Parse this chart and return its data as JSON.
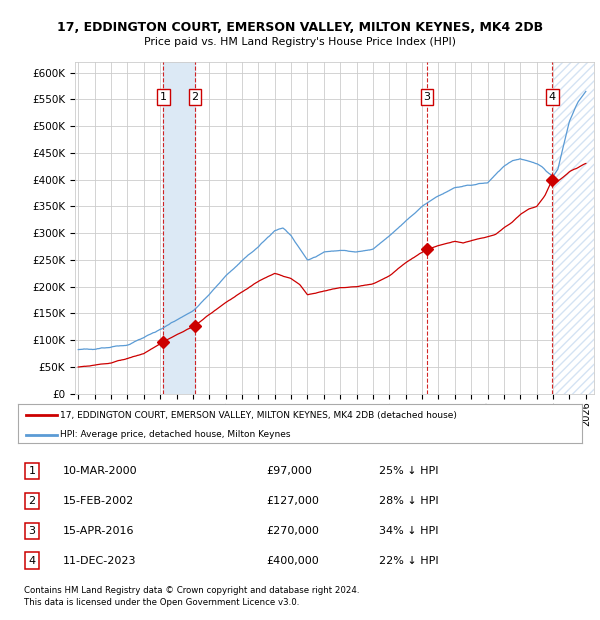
{
  "title1": "17, EDDINGTON COURT, EMERSON VALLEY, MILTON KEYNES, MK4 2DB",
  "title2": "Price paid vs. HM Land Registry's House Price Index (HPI)",
  "ylabel_ticks": [
    "£0",
    "£50K",
    "£100K",
    "£150K",
    "£200K",
    "£250K",
    "£300K",
    "£350K",
    "£400K",
    "£450K",
    "£500K",
    "£550K",
    "£600K"
  ],
  "ytick_vals": [
    0,
    50000,
    100000,
    150000,
    200000,
    250000,
    300000,
    350000,
    400000,
    450000,
    500000,
    550000,
    600000
  ],
  "xmin": 1994.8,
  "xmax": 2026.5,
  "ymin": 0,
  "ymax": 620000,
  "sale_dates": [
    2000.19,
    2002.12,
    2016.29,
    2023.95
  ],
  "sale_prices": [
    97000,
    127000,
    270000,
    400000
  ],
  "sale_labels": [
    "1",
    "2",
    "3",
    "4"
  ],
  "shaded_spans": [
    [
      2000.19,
      2002.12
    ]
  ],
  "legend_line1": "17, EDDINGTON COURT, EMERSON VALLEY, MILTON KEYNES, MK4 2DB (detached house)",
  "legend_line2": "HPI: Average price, detached house, Milton Keynes",
  "table_rows": [
    {
      "num": "1",
      "date": "10-MAR-2000",
      "price": "£97,000",
      "pct": "25% ↓ HPI"
    },
    {
      "num": "2",
      "date": "15-FEB-2002",
      "price": "£127,000",
      "pct": "28% ↓ HPI"
    },
    {
      "num": "3",
      "date": "15-APR-2016",
      "price": "£270,000",
      "pct": "34% ↓ HPI"
    },
    {
      "num": "4",
      "date": "11-DEC-2023",
      "price": "£400,000",
      "pct": "22% ↓ HPI"
    }
  ],
  "footnote1": "Contains HM Land Registry data © Crown copyright and database right 2024.",
  "footnote2": "This data is licensed under the Open Government Licence v3.0.",
  "hpi_color": "#5b9bd5",
  "price_color": "#cc0000",
  "dashed_color": "#cc0000",
  "shaded_color": "#dce9f5",
  "hatch_color": "#aac8e8",
  "grid_color": "#cccccc",
  "bg_color": "#ffffff"
}
